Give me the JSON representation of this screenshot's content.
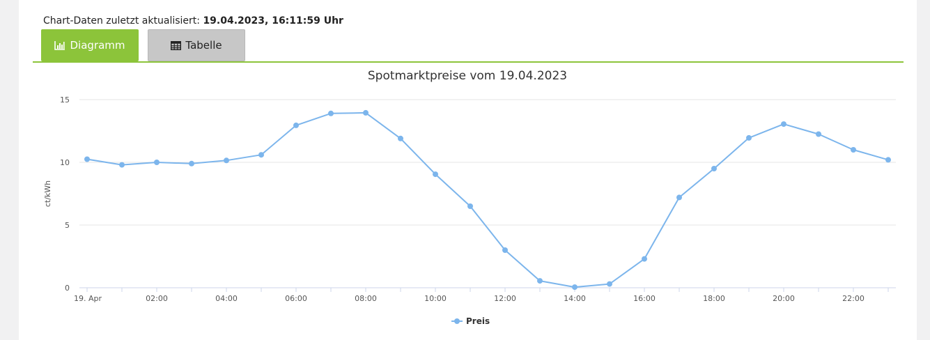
{
  "header": {
    "updated_label": "Chart-Daten zuletzt aktualisiert:",
    "updated_value": "19.04.2023, 16:11:59 Uhr"
  },
  "tabs": {
    "diagram_label": "Diagramm",
    "table_label": "Tabelle"
  },
  "colors": {
    "accent": "#8cc43a",
    "series": "#7cb5ec"
  },
  "chart_data": {
    "type": "line",
    "title": "Spotmarktpreise vom 19.04.2023",
    "ylabel": "ct/kWh",
    "xlabel": "",
    "ylim": [
      0,
      15
    ],
    "yticks": [
      "0",
      "5",
      "10",
      "15"
    ],
    "x_tick_labels": [
      "19. Apr",
      "02:00",
      "04:00",
      "06:00",
      "08:00",
      "10:00",
      "12:00",
      "14:00",
      "16:00",
      "18:00",
      "20:00",
      "22:00"
    ],
    "x_hours": [
      0,
      1,
      2,
      3,
      4,
      5,
      6,
      7,
      8,
      9,
      10,
      11,
      12,
      13,
      14,
      15,
      16,
      17,
      18,
      19,
      20,
      21,
      22,
      23
    ],
    "grid": "horizontal",
    "legend_position": "bottom-center",
    "series": [
      {
        "name": "Preis",
        "values": [
          10.25,
          9.8,
          10.0,
          9.9,
          10.15,
          10.6,
          12.95,
          13.9,
          13.95,
          11.9,
          9.05,
          6.5,
          3.0,
          0.55,
          0.05,
          0.3,
          2.3,
          7.2,
          9.5,
          11.95,
          13.05,
          12.25,
          11.0,
          10.2
        ]
      }
    ]
  }
}
